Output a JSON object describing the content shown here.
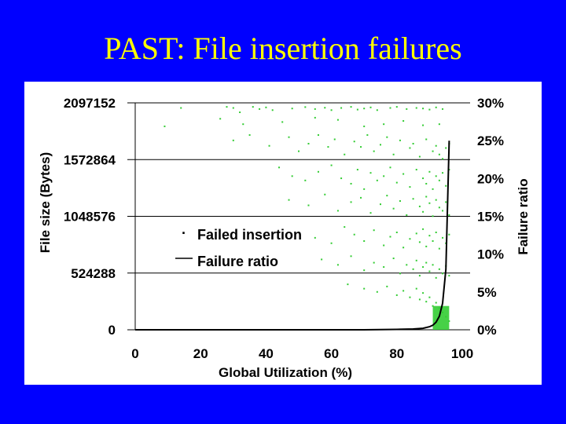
{
  "slide": {
    "title": "PAST: File insertion failures"
  },
  "colors": {
    "background": "#0000ff",
    "title": "#ffff00",
    "points": "#33cc33",
    "ratio_line": "#000000"
  },
  "chart_data": {
    "type": "scatter",
    "xlabel": "Global Utilization (%)",
    "ylabel_left": "File size (Bytes)",
    "ylabel_right": "Failure ratio",
    "xlim": [
      0,
      100
    ],
    "ylim_left": [
      0,
      2097152
    ],
    "ylim_right": [
      0,
      30
    ],
    "x_ticks": [
      "0",
      "20",
      "40",
      "60",
      "80",
      "100"
    ],
    "y_left_ticks": [
      "0",
      "524288",
      "1048576",
      "1572864",
      "2097152"
    ],
    "y_right_ticks": [
      "0%",
      "5%",
      "10%",
      "15%",
      "20%",
      "25%",
      "30%"
    ],
    "legend": {
      "placement": "center-left",
      "entries": [
        "Failed insertion",
        "Failure ratio"
      ]
    },
    "series": [
      {
        "name": "Failed insertion",
        "kind": "scatter",
        "axis": "left",
        "x": [
          14,
          28,
          30,
          32,
          36,
          38,
          40,
          42,
          48,
          52,
          55,
          58,
          60,
          63,
          66,
          68,
          70,
          72,
          74,
          78,
          80,
          83,
          86,
          88,
          90,
          92,
          94,
          9,
          26,
          33,
          45,
          55,
          62,
          70,
          76,
          82,
          88,
          93,
          30,
          35,
          41,
          47,
          50,
          53,
          56,
          59,
          61,
          64,
          67,
          69,
          71,
          73,
          75,
          77,
          79,
          81,
          84,
          85,
          87,
          89,
          91,
          92,
          93,
          94,
          95,
          96,
          44,
          48,
          52,
          56,
          60,
          63,
          66,
          68,
          70,
          72,
          74,
          76,
          78,
          80,
          82,
          84,
          86,
          88,
          89,
          90,
          91,
          92,
          93,
          94,
          95,
          96,
          47,
          53,
          58,
          62,
          66,
          69,
          72,
          75,
          77,
          79,
          81,
          83,
          85,
          87,
          88,
          89,
          90,
          91,
          92,
          93,
          94,
          95,
          96,
          50,
          55,
          60,
          64,
          67,
          70,
          73,
          76,
          78,
          80,
          82,
          84,
          86,
          87,
          88,
          89,
          90,
          91,
          92,
          93,
          94,
          95,
          96,
          57,
          62,
          66,
          70,
          73,
          76,
          79,
          81,
          83,
          85,
          86,
          87,
          88,
          89,
          90,
          91,
          92,
          93,
          94,
          95,
          96,
          65,
          70,
          74,
          77,
          80,
          82,
          84,
          86,
          87,
          88,
          89,
          90,
          91,
          92,
          93,
          94,
          95,
          96
        ],
        "y": [
          2050000,
          2060000,
          2050000,
          2010000,
          2060000,
          2040000,
          2055000,
          2030000,
          2045000,
          2058000,
          2040000,
          2052000,
          2030000,
          2050000,
          2060000,
          2035000,
          2045000,
          2055000,
          2030000,
          2050000,
          2060000,
          2040000,
          2050000,
          2045000,
          2035000,
          2055000,
          2040000,
          1880000,
          1950000,
          1900000,
          1920000,
          1960000,
          1940000,
          1880000,
          1900000,
          1930000,
          1890000,
          1900000,
          1750000,
          1800000,
          1700000,
          1780000,
          1650000,
          1720000,
          1800000,
          1690000,
          1760000,
          1620000,
          1740000,
          1690000,
          1800000,
          1650000,
          1710000,
          1780000,
          1620000,
          1750000,
          1680000,
          1720000,
          1600000,
          1760000,
          1650000,
          1700000,
          1620000,
          1580000,
          1680000,
          1720000,
          1500000,
          1420000,
          1380000,
          1460000,
          1520000,
          1400000,
          1350000,
          1480000,
          1300000,
          1450000,
          1380000,
          1420000,
          1500000,
          1360000,
          1440000,
          1320000,
          1480000,
          1400000,
          1350000,
          1460000,
          1300000,
          1420000,
          1380000,
          1450000,
          1330000,
          1480000,
          1200000,
          1150000,
          1250000,
          1100000,
          1180000,
          1220000,
          1080000,
          1160000,
          1240000,
          1120000,
          1190000,
          1060000,
          1210000,
          1140000,
          1090000,
          1230000,
          1170000,
          1050000,
          1200000,
          1130000,
          1100000,
          1180000,
          1060000,
          900000,
          850000,
          800000,
          950000,
          880000,
          820000,
          920000,
          780000,
          860000,
          900000,
          760000,
          840000,
          890000,
          810000,
          930000,
          770000,
          870000,
          820000,
          900000,
          750000,
          850000,
          800000,
          880000,
          650000,
          600000,
          680000,
          550000,
          620000,
          580000,
          660000,
          520000,
          600000,
          560000,
          640000,
          500000,
          580000,
          620000,
          540000,
          600000,
          480000,
          560000,
          520000,
          590000,
          500000,
          420000,
          380000,
          350000,
          400000,
          320000,
          360000,
          300000,
          380000,
          280000,
          340000,
          260000,
          300000,
          220000,
          250000,
          200000,
          160000,
          120000,
          80000
        ]
      },
      {
        "name": "Failure ratio",
        "kind": "line",
        "axis": "right",
        "x": [
          0,
          10,
          20,
          30,
          40,
          50,
          60,
          70,
          80,
          85,
          88,
          90,
          91,
          92,
          93,
          94,
          95,
          96
        ],
        "y": [
          0,
          0,
          0,
          0,
          0,
          0,
          0,
          0,
          0.05,
          0.1,
          0.2,
          0.4,
          0.6,
          1.0,
          1.8,
          3.5,
          8.0,
          25.0
        ]
      }
    ]
  }
}
